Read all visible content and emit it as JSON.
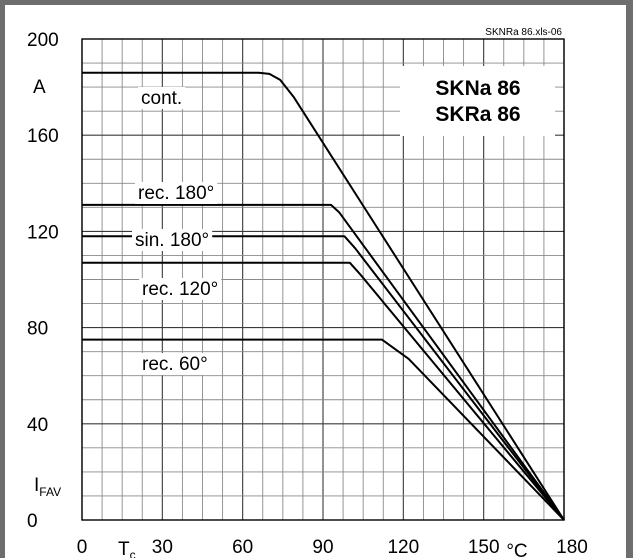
{
  "chart_data": {
    "type": "line",
    "title": [
      "SKNa 86",
      "SKRa 86"
    ],
    "reference": "SKNRa 86.xls-06",
    "xlabel": {
      "main": "T",
      "sub": "c"
    },
    "xunit": "°C",
    "ylabel": {
      "main": "I",
      "sub": "FAV"
    },
    "yunit": "A",
    "xlim": [
      0,
      180
    ],
    "ylim": [
      0,
      200
    ],
    "x_ticks": [
      "0",
      "30",
      "60",
      "90",
      "120",
      "150",
      "180"
    ],
    "y_ticks": [
      "0",
      "40",
      "80",
      "120",
      "160",
      "200"
    ],
    "grid": true,
    "series": [
      {
        "name": "cont.",
        "points": [
          [
            0,
            186
          ],
          [
            66,
            186
          ],
          [
            70,
            185.5
          ],
          [
            74,
            183
          ],
          [
            79,
            176
          ],
          [
            180,
            0
          ]
        ]
      },
      {
        "name": "rec. 180°",
        "points": [
          [
            0,
            131
          ],
          [
            93,
            131
          ],
          [
            96,
            128
          ],
          [
            180,
            0
          ]
        ]
      },
      {
        "name": "sin. 180°",
        "points": [
          [
            0,
            118
          ],
          [
            98,
            118
          ],
          [
            102,
            113
          ],
          [
            180,
            0
          ]
        ]
      },
      {
        "name": "rec. 120°",
        "points": [
          [
            0,
            107
          ],
          [
            100,
            107
          ],
          [
            104,
            102
          ],
          [
            180,
            0
          ]
        ]
      },
      {
        "name": "rec. 60°",
        "points": [
          [
            0,
            75
          ],
          [
            112,
            75
          ],
          [
            122,
            67
          ],
          [
            180,
            0
          ]
        ]
      }
    ]
  }
}
